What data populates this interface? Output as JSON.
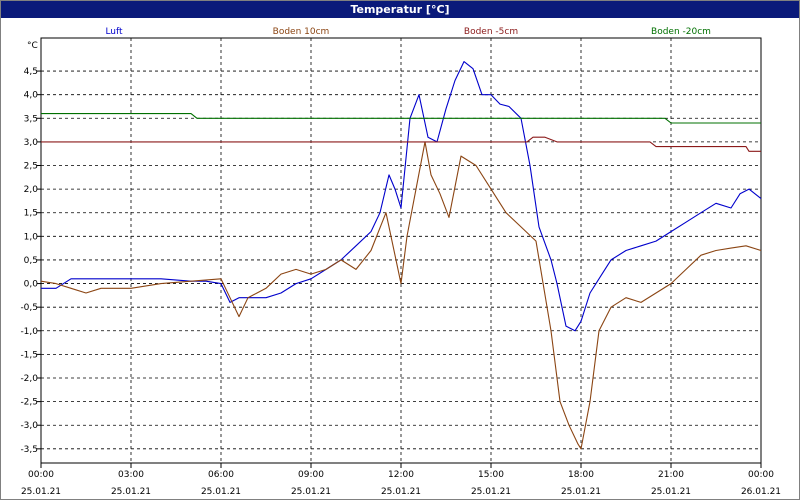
{
  "window": {
    "title": "Temperatur [°C]"
  },
  "chart_data": {
    "type": "line",
    "unit_label": "°C",
    "ylim": [
      -3.8,
      5.2
    ],
    "yticks": [
      4.5,
      4.0,
      3.5,
      3.0,
      2.5,
      2.0,
      1.5,
      1.0,
      0.5,
      0.0,
      -0.5,
      -1.0,
      -1.5,
      -2.0,
      -2.5,
      -3.0,
      -3.5
    ],
    "ytick_labels": [
      "4,5",
      "4,0",
      "3,5",
      "3,0",
      "2,5",
      "2,0",
      "1,5",
      "1,0",
      "0,5",
      "0,0",
      "-0,5",
      "-1,0",
      "-1,5",
      "-2,0",
      "-2,5",
      "-3,0",
      "-3,5"
    ],
    "xlim": [
      0,
      24
    ],
    "xticks": [
      {
        "h": 0,
        "time": "00:00",
        "date": "25.01.21"
      },
      {
        "h": 3,
        "time": "03:00",
        "date": "25.01.21"
      },
      {
        "h": 6,
        "time": "06:00",
        "date": "25.01.21"
      },
      {
        "h": 9,
        "time": "09:00",
        "date": "25.01.21"
      },
      {
        "h": 12,
        "time": "12:00",
        "date": "25.01.21"
      },
      {
        "h": 15,
        "time": "15:00",
        "date": "25.01.21"
      },
      {
        "h": 18,
        "time": "18:00",
        "date": "25.01.21"
      },
      {
        "h": 21,
        "time": "21:00",
        "date": "25.01.21"
      },
      {
        "h": 24,
        "time": "00:00",
        "date": "26.01.21"
      }
    ],
    "grid": true,
    "series": [
      {
        "name": "Luft",
        "color": "#0000cc",
        "x": [
          0,
          0.5,
          1,
          2,
          3,
          4,
          5,
          5.5,
          6,
          6.3,
          6.6,
          7,
          7.5,
          8,
          8.5,
          9,
          9.5,
          10,
          10.5,
          11,
          11.3,
          11.6,
          11.8,
          12,
          12.3,
          12.6,
          12.9,
          13.2,
          13.5,
          13.8,
          14.1,
          14.4,
          14.7,
          15,
          15.3,
          15.6,
          16,
          16.3,
          16.6,
          17,
          17.2,
          17.5,
          17.8,
          18,
          18.3,
          18.7,
          19,
          19.5,
          20,
          20.5,
          21,
          21.5,
          22,
          22.5,
          23,
          23.3,
          23.6,
          24
        ],
        "y": [
          -0.1,
          -0.1,
          0.1,
          0.1,
          0.1,
          0.1,
          0.05,
          0.05,
          0,
          -0.4,
          -0.3,
          -0.3,
          -0.3,
          -0.2,
          0,
          0.1,
          0.3,
          0.5,
          0.8,
          1.1,
          1.5,
          2.3,
          2.0,
          1.6,
          3.5,
          4.0,
          3.1,
          3.0,
          3.7,
          4.3,
          4.7,
          4.55,
          4.0,
          4.0,
          3.8,
          3.75,
          3.5,
          2.5,
          1.2,
          0.5,
          0.0,
          -0.9,
          -1.0,
          -0.8,
          -0.2,
          0.2,
          0.5,
          0.7,
          0.8,
          0.9,
          1.1,
          1.3,
          1.5,
          1.7,
          1.6,
          1.9,
          2.0,
          1.8
        ]
      },
      {
        "name": "Boden 10cm",
        "color": "#8b4513",
        "x": [
          0,
          0.5,
          1,
          1.5,
          2,
          3,
          4,
          5,
          6,
          6.3,
          6.6,
          6.9,
          7.2,
          7.5,
          8,
          8.5,
          9,
          9.5,
          10,
          10.5,
          11,
          11.5,
          12,
          12.2,
          12.5,
          12.8,
          13,
          13.3,
          13.6,
          14,
          14.5,
          15,
          15.5,
          16,
          16.5,
          17,
          17.3,
          17.6,
          17.9,
          18,
          18.3,
          18.6,
          19,
          19.5,
          20,
          20.5,
          21,
          21.5,
          22,
          22.5,
          23,
          23.5,
          24
        ],
        "y": [
          0.05,
          0.0,
          -0.1,
          -0.2,
          -0.1,
          -0.1,
          0.0,
          0.05,
          0.1,
          -0.3,
          -0.7,
          -0.3,
          -0.2,
          -0.1,
          0.2,
          0.3,
          0.2,
          0.3,
          0.5,
          0.3,
          0.7,
          1.5,
          0.0,
          1.0,
          2.0,
          3.0,
          2.3,
          1.9,
          1.4,
          2.7,
          2.5,
          2.0,
          1.5,
          1.2,
          0.9,
          -1.0,
          -2.5,
          -3.0,
          -3.4,
          -3.5,
          -2.5,
          -1.0,
          -0.5,
          -0.3,
          -0.4,
          -0.2,
          0.0,
          0.3,
          0.6,
          0.7,
          0.75,
          0.8,
          0.7
        ]
      },
      {
        "name": "Boden -5cm",
        "color": "#8b1a1a",
        "x": [
          0,
          16.2,
          16.4,
          16.8,
          17.2,
          20.3,
          20.5,
          23.5,
          23.6,
          24
        ],
        "y": [
          3.0,
          3.0,
          3.1,
          3.1,
          3.0,
          3.0,
          2.9,
          2.9,
          2.8,
          2.8
        ]
      },
      {
        "name": "Boden -20cm",
        "color": "#007000",
        "x": [
          0,
          5.0,
          5.2,
          20.8,
          21.0,
          24
        ],
        "y": [
          3.6,
          3.6,
          3.5,
          3.5,
          3.4,
          3.4
        ]
      }
    ]
  }
}
